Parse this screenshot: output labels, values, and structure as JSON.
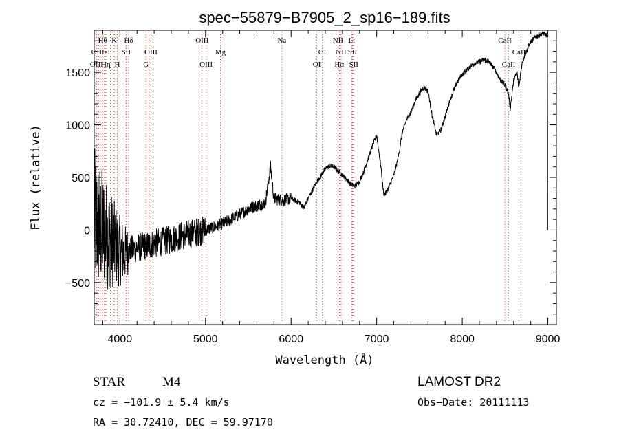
{
  "chart_data": {
    "type": "line",
    "title": "spec−55879−B7905_2_sp16−189.fits",
    "xlabel": "Wavelength (Å)",
    "ylabel": "Flux (relative)",
    "xlim": [
      3700,
      9100
    ],
    "ylim": [
      -900,
      1900
    ],
    "x_ticks": [
      4000,
      5000,
      6000,
      7000,
      8000,
      9000
    ],
    "y_ticks": [
      -500,
      0,
      500,
      1000,
      1500
    ],
    "grid": false,
    "series": [
      {
        "x": [
          3700,
          3750,
          3800,
          3850,
          3900,
          3950,
          4000,
          4050,
          4100,
          4200,
          4300,
          4400,
          4500,
          4600,
          4700,
          4800,
          4900,
          5000,
          5100,
          5200,
          5300,
          5400,
          5500,
          5600,
          5700,
          5760,
          5800,
          5900,
          6000,
          6100,
          6150,
          6200,
          6250,
          6300,
          6350,
          6400,
          6450,
          6500,
          6550,
          6600,
          6650,
          6700,
          6750,
          6800,
          6850,
          6900,
          6950,
          7000,
          7050,
          7080,
          7100,
          7150,
          7200,
          7250,
          7300,
          7350,
          7400,
          7450,
          7500,
          7550,
          7600,
          7650,
          7700,
          7750,
          7800,
          7850,
          7900,
          7950,
          8000,
          8050,
          8100,
          8150,
          8200,
          8250,
          8300,
          8350,
          8400,
          8450,
          8500,
          8540,
          8560,
          8600,
          8640,
          8660,
          8700,
          8750,
          8800,
          8850,
          8900,
          8950,
          8990,
          9000
        ],
        "y": [
          100,
          50,
          0,
          -50,
          -100,
          -150,
          -200,
          -220,
          -200,
          -170,
          -150,
          -130,
          -110,
          -90,
          -60,
          -40,
          -20,
          0,
          30,
          60,
          100,
          150,
          200,
          230,
          260,
          600,
          300,
          280,
          300,
          260,
          210,
          300,
          380,
          460,
          520,
          580,
          610,
          600,
          560,
          520,
          480,
          430,
          420,
          460,
          560,
          680,
          800,
          900,
          600,
          350,
          340,
          420,
          520,
          680,
          930,
          1050,
          1120,
          1230,
          1300,
          1360,
          1320,
          1080,
          900,
          950,
          1080,
          1220,
          1330,
          1420,
          1480,
          1520,
          1560,
          1590,
          1600,
          1620,
          1610,
          1560,
          1500,
          1420,
          1380,
          1300,
          1150,
          1420,
          1500,
          1350,
          1600,
          1700,
          1790,
          1830,
          1860,
          1870,
          1850,
          0
        ]
      }
    ],
    "line_labels": [
      {
        "text": "Hθ",
        "x": 3798,
        "row": 1
      },
      {
        "text": "K",
        "x": 3934,
        "row": 1
      },
      {
        "text": "Hδ",
        "x": 4102,
        "row": 1
      },
      {
        "text": "OII",
        "x": 3727,
        "row": 2
      },
      {
        "text": "HeI",
        "x": 3820,
        "row": 2
      },
      {
        "text": "SII",
        "x": 4072,
        "row": 2
      },
      {
        "text": "OIII",
        "x": 4363,
        "row": 2
      },
      {
        "text": "OIII",
        "x": 3727,
        "row": 3
      },
      {
        "text": "Hη",
        "x": 3835,
        "row": 3
      },
      {
        "text": "H",
        "x": 3969,
        "row": 3
      },
      {
        "text": "G",
        "x": 4304,
        "row": 3
      },
      {
        "text": "OIII",
        "x": 4959,
        "row": 1
      },
      {
        "text": "Mg",
        "x": 5175,
        "row": 2
      },
      {
        "text": "OIII",
        "x": 5007,
        "row": 3
      },
      {
        "text": "Na",
        "x": 5893,
        "row": 1
      },
      {
        "text": "OI",
        "x": 6364,
        "row": 2
      },
      {
        "text": "OI",
        "x": 6300,
        "row": 3
      },
      {
        "text": "NII",
        "x": 6548,
        "row": 1
      },
      {
        "text": "Li",
        "x": 6708,
        "row": 1
      },
      {
        "text": "NII",
        "x": 6584,
        "row": 2
      },
      {
        "text": "SII",
        "x": 6717,
        "row": 2
      },
      {
        "text": "Hα",
        "x": 6563,
        "row": 3
      },
      {
        "text": "SII",
        "x": 6731,
        "row": 3
      },
      {
        "text": "CaII",
        "x": 8498,
        "row": 1
      },
      {
        "text": "CaII",
        "x": 8662,
        "row": 2
      },
      {
        "text": "CaII",
        "x": 8542,
        "row": 3
      }
    ],
    "line_markers": [
      3727,
      3750,
      3771,
      3798,
      3820,
      3835,
      3889,
      3934,
      3969,
      4072,
      4102,
      4304,
      4340,
      4363,
      4959,
      5007,
      5175,
      5893,
      6300,
      6364,
      6548,
      6563,
      6584,
      6708,
      6717,
      6731,
      8498,
      8542,
      8662
    ]
  },
  "info": {
    "object_class": "STAR",
    "subclass": "M4",
    "survey": "LAMOST DR2",
    "cz": "cz = −101.9 ± 5.4 km/s",
    "obs_date": "Obs−Date: 20111113",
    "coords": "RA =  30.72410, DEC =  59.97170"
  }
}
